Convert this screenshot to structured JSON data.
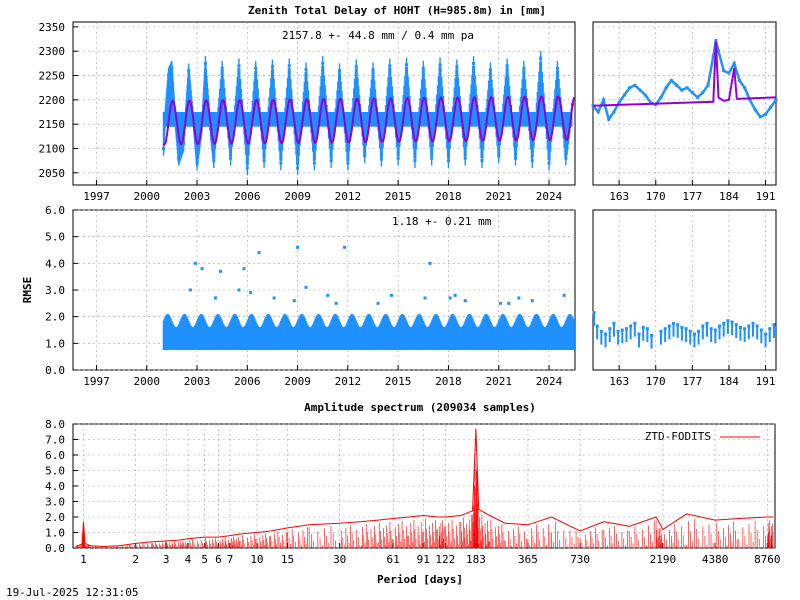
{
  "timestamp": "19-Jul-2025 12:31:05",
  "chart_data": [
    {
      "id": "ztd",
      "type": "scatter",
      "title": "Zenith Total Delay of HOHT (H=985.8m) in [mm]",
      "annotation": "2157.8 +-  44.8 mm /  0.4 mm pa",
      "xlabel": "",
      "ylabel": "",
      "x_ticks": [
        "1997",
        "2000",
        "2003",
        "2006",
        "2009",
        "2012",
        "2015",
        "2018",
        "2021",
        "2024"
      ],
      "y_ticks": [
        "2050",
        "2100",
        "2150",
        "2200",
        "2250",
        "2300",
        "2350"
      ],
      "xlim": [
        1995.6,
        2025.55
      ],
      "ylim": [
        2025,
        2360
      ],
      "grid": true,
      "colors": {
        "observations": "#1e90ff",
        "model": "#9400d3"
      },
      "series": [
        {
          "role": "observations",
          "points": [
            [
              2001.0,
              2100
            ],
            [
              2001.1,
              2165
            ],
            [
              2001.3,
              2250
            ],
            [
              2001.5,
              2265
            ],
            [
              2001.7,
              2160
            ],
            [
              2001.9,
              2080
            ],
            [
              2002.2,
              2110
            ],
            [
              2002.5,
              2260
            ],
            [
              2002.8,
              2150
            ],
            [
              2003.0,
              2070
            ],
            [
              2003.3,
              2150
            ],
            [
              2003.5,
              2275
            ],
            [
              2003.8,
              2140
            ],
            [
              2004.0,
              2075
            ],
            [
              2004.5,
              2265
            ],
            [
              2005.0,
              2080
            ],
            [
              2005.5,
              2270
            ],
            [
              2006.0,
              2060
            ],
            [
              2006.5,
              2265
            ],
            [
              2007.0,
              2075
            ],
            [
              2007.5,
              2268
            ],
            [
              2008.0,
              2070
            ],
            [
              2008.5,
              2270
            ],
            [
              2009.0,
              2060
            ],
            [
              2009.5,
              2262
            ],
            [
              2010.0,
              2070
            ],
            [
              2010.5,
              2275
            ],
            [
              2011.0,
              2075
            ],
            [
              2011.5,
              2260
            ],
            [
              2012.0,
              2070
            ],
            [
              2012.5,
              2268
            ],
            [
              2013.0,
              2085
            ],
            [
              2013.5,
              2262
            ],
            [
              2014.0,
              2078
            ],
            [
              2014.5,
              2270
            ],
            [
              2015.0,
              2080
            ],
            [
              2015.5,
              2272
            ],
            [
              2016.0,
              2075
            ],
            [
              2016.5,
              2265
            ],
            [
              2017.0,
              2080
            ],
            [
              2017.5,
              2272
            ],
            [
              2018.0,
              2075
            ],
            [
              2018.5,
              2268
            ],
            [
              2019.0,
              2080
            ],
            [
              2019.5,
              2275
            ],
            [
              2020.0,
              2075
            ],
            [
              2020.5,
              2262
            ],
            [
              2021.0,
              2085
            ],
            [
              2021.5,
              2270
            ],
            [
              2022.0,
              2080
            ],
            [
              2022.5,
              2265
            ],
            [
              2023.0,
              2075
            ],
            [
              2023.5,
              2285
            ],
            [
              2024.0,
              2070
            ],
            [
              2024.5,
              2265
            ],
            [
              2025.0,
              2080
            ],
            [
              2025.4,
              2190
            ]
          ]
        },
        {
          "role": "model",
          "mean": 2157.8,
          "amplitude": 44.8,
          "trend_per_year": 0.4,
          "start": 2001.0,
          "end": 2025.5
        }
      ]
    },
    {
      "id": "ztd-recent",
      "type": "line",
      "x_ticks": [
        "163",
        "170",
        "177",
        "184",
        "191"
      ],
      "xlim": [
        158.0,
        193.0
      ],
      "ylim": [
        2025,
        2360
      ],
      "grid": true,
      "series": [
        {
          "role": "observations",
          "points": [
            [
              158.0,
              2188
            ],
            [
              159.0,
              2175
            ],
            [
              160.0,
              2200
            ],
            [
              161.0,
              2160
            ],
            [
              162.0,
              2175
            ],
            [
              163.0,
              2195
            ],
            [
              164.0,
              2210
            ],
            [
              165.0,
              2225
            ],
            [
              166.0,
              2230
            ],
            [
              167.0,
              2220
            ],
            [
              168.0,
              2210
            ],
            [
              169.0,
              2195
            ],
            [
              170.0,
              2190
            ],
            [
              171.0,
              2205
            ],
            [
              172.0,
              2225
            ],
            [
              173.0,
              2240
            ],
            [
              174.0,
              2230
            ],
            [
              175.0,
              2220
            ],
            [
              176.0,
              2225
            ],
            [
              177.0,
              2215
            ],
            [
              178.0,
              2205
            ],
            [
              179.0,
              2215
            ],
            [
              180.0,
              2230
            ],
            [
              181.0,
              2290
            ],
            [
              181.5,
              2322
            ],
            [
              182.0,
              2300
            ],
            [
              183.0,
              2260
            ],
            [
              184.0,
              2255
            ],
            [
              185.0,
              2275
            ],
            [
              186.0,
              2240
            ],
            [
              187.0,
              2225
            ],
            [
              188.0,
              2200
            ],
            [
              189.0,
              2180
            ],
            [
              190.0,
              2165
            ],
            [
              191.0,
              2170
            ],
            [
              192.0,
              2185
            ],
            [
              193.0,
              2200
            ]
          ]
        },
        {
          "role": "model",
          "points": [
            [
              158.0,
              2188
            ],
            [
              181.0,
              2196
            ],
            [
              181.5,
              2320
            ],
            [
              182.0,
              2205
            ],
            [
              183.0,
              2198
            ],
            [
              184.0,
              2200
            ],
            [
              185.0,
              2265
            ],
            [
              185.5,
              2202
            ],
            [
              193.0,
              2205
            ]
          ]
        }
      ]
    },
    {
      "id": "rmse",
      "type": "scatter",
      "annotation": "1.18 +-  0.21 mm",
      "ylabel": "RMSE",
      "x_ticks": [
        "1997",
        "2000",
        "2003",
        "2006",
        "2009",
        "2012",
        "2015",
        "2018",
        "2021",
        "2024"
      ],
      "y_ticks": [
        "0.0",
        "1.0",
        "2.0",
        "3.0",
        "4.0",
        "5.0",
        "6.0"
      ],
      "xlim": [
        1995.6,
        2025.55
      ],
      "ylim": [
        0.0,
        6.0
      ],
      "grid": true,
      "series": [
        {
          "role": "observations",
          "band": {
            "start": 2001.0,
            "end": 2025.5,
            "low": 0.75,
            "high": 1.85
          },
          "outliers": [
            [
              2002.6,
              3.0
            ],
            [
              2002.9,
              4.0
            ],
            [
              2003.3,
              3.8
            ],
            [
              2004.1,
              2.7
            ],
            [
              2004.4,
              3.7
            ],
            [
              2005.5,
              3.0
            ],
            [
              2005.8,
              3.8
            ],
            [
              2006.2,
              2.9
            ],
            [
              2006.7,
              4.4
            ],
            [
              2007.6,
              2.7
            ],
            [
              2008.8,
              2.6
            ],
            [
              2009.0,
              4.6
            ],
            [
              2009.5,
              3.1
            ],
            [
              2010.8,
              2.8
            ],
            [
              2011.3,
              2.5
            ],
            [
              2011.8,
              4.6
            ],
            [
              2013.8,
              2.5
            ],
            [
              2014.6,
              2.8
            ],
            [
              2016.6,
              2.7
            ],
            [
              2016.9,
              4.0
            ],
            [
              2018.1,
              2.7
            ],
            [
              2018.4,
              2.8
            ],
            [
              2019.0,
              2.6
            ],
            [
              2021.1,
              2.5
            ],
            [
              2021.6,
              2.5
            ],
            [
              2022.2,
              2.7
            ],
            [
              2023.0,
              2.6
            ],
            [
              2024.9,
              2.8
            ]
          ]
        }
      ]
    },
    {
      "id": "rmse-recent",
      "type": "scatter",
      "x_ticks": [
        "163",
        "170",
        "177",
        "184",
        "191"
      ],
      "xlim": [
        158.0,
        193.0
      ],
      "ylim": [
        0.0,
        6.0
      ],
      "grid": true,
      "series": [
        {
          "role": "observations",
          "points": [
            [
              158.2,
              1.9
            ],
            [
              158.8,
              1.4
            ],
            [
              159.6,
              1.2
            ],
            [
              160.4,
              1.1
            ],
            [
              161.2,
              1.3
            ],
            [
              162.0,
              1.5
            ],
            [
              162.8,
              1.2
            ],
            [
              163.6,
              1.25
            ],
            [
              164.4,
              1.3
            ],
            [
              165.2,
              1.4
            ],
            [
              166.0,
              1.5
            ],
            [
              166.8,
              1.1
            ],
            [
              167.6,
              1.35
            ],
            [
              168.4,
              1.3
            ],
            [
              169.2,
              1.05
            ],
            [
              171.0,
              1.2
            ],
            [
              171.8,
              1.3
            ],
            [
              172.6,
              1.4
            ],
            [
              173.4,
              1.5
            ],
            [
              174.2,
              1.45
            ],
            [
              175.0,
              1.35
            ],
            [
              175.8,
              1.3
            ],
            [
              176.6,
              1.2
            ],
            [
              177.4,
              1.1
            ],
            [
              178.2,
              1.2
            ],
            [
              179.0,
              1.4
            ],
            [
              179.8,
              1.5
            ],
            [
              180.6,
              1.3
            ],
            [
              181.4,
              1.25
            ],
            [
              182.2,
              1.4
            ],
            [
              183.0,
              1.5
            ],
            [
              183.8,
              1.6
            ],
            [
              184.6,
              1.55
            ],
            [
              185.4,
              1.45
            ],
            [
              186.2,
              1.35
            ],
            [
              187.0,
              1.3
            ],
            [
              187.8,
              1.4
            ],
            [
              188.6,
              1.5
            ],
            [
              189.4,
              1.4
            ],
            [
              190.2,
              1.25
            ],
            [
              191.0,
              1.1
            ],
            [
              191.8,
              1.3
            ],
            [
              192.6,
              1.45
            ]
          ]
        }
      ]
    },
    {
      "id": "spectrum",
      "type": "line",
      "title": "Amplitude spectrum (209034 samples)",
      "xlabel": "Period [days]",
      "ylabel": "",
      "x_scale": "log",
      "x_ticks": [
        "1",
        "2",
        "3",
        "4",
        "5",
        "6",
        "7",
        "10",
        "15",
        "30",
        "61",
        "91",
        "122",
        "183",
        "365",
        "730",
        "2190",
        "4380",
        "8760"
      ],
      "y_ticks": [
        "0.0",
        "1.0",
        "2.0",
        "3.0",
        "4.0",
        "5.0",
        "6.0",
        "7.0",
        "8.0"
      ],
      "xlim": [
        0.87,
        9700
      ],
      "ylim": [
        0.0,
        8.0
      ],
      "grid": true,
      "legend": "top-right",
      "series": [
        {
          "name": "ZTD-FODITS",
          "color": "#ff0000",
          "points": [
            [
              0.9,
              0.1
            ],
            [
              0.98,
              0.25
            ],
            [
              1.0,
              1.7
            ],
            [
              1.02,
              0.3
            ],
            [
              1.1,
              0.15
            ],
            [
              1.3,
              0.1
            ],
            [
              1.6,
              0.15
            ],
            [
              2.0,
              0.3
            ],
            [
              2.5,
              0.4
            ],
            [
              3.0,
              0.45
            ],
            [
              3.5,
              0.5
            ],
            [
              4.0,
              0.6
            ],
            [
              5.0,
              0.7
            ],
            [
              6.0,
              0.7
            ],
            [
              7.0,
              0.8
            ],
            [
              8.0,
              0.9
            ],
            [
              10.0,
              1.0
            ],
            [
              12.0,
              1.1
            ],
            [
              15.0,
              1.3
            ],
            [
              20.0,
              1.5
            ],
            [
              30.0,
              1.6
            ],
            [
              40.0,
              1.7
            ],
            [
              50.0,
              1.8
            ],
            [
              61.0,
              1.9
            ],
            [
              75.0,
              2.0
            ],
            [
              91.0,
              2.1
            ],
            [
              110.0,
              2.0
            ],
            [
              122.0,
              2.0
            ],
            [
              150.0,
              2.1
            ],
            [
              175.0,
              2.4
            ],
            [
              183.0,
              7.7
            ],
            [
              190.0,
              2.5
            ],
            [
              220.0,
              2.1
            ],
            [
              270.0,
              1.6
            ],
            [
              365.0,
              1.5
            ],
            [
              500.0,
              2.0
            ],
            [
              730.0,
              1.1
            ],
            [
              1000.0,
              1.7
            ],
            [
              1400.0,
              1.4
            ],
            [
              2000.0,
              2.0
            ],
            [
              2190.0,
              1.2
            ],
            [
              3000.0,
              2.2
            ],
            [
              4380.0,
              1.8
            ],
            [
              6000.0,
              1.9
            ],
            [
              8760.0,
              2.0
            ],
            [
              9500.0,
              2.0
            ]
          ]
        }
      ]
    }
  ]
}
